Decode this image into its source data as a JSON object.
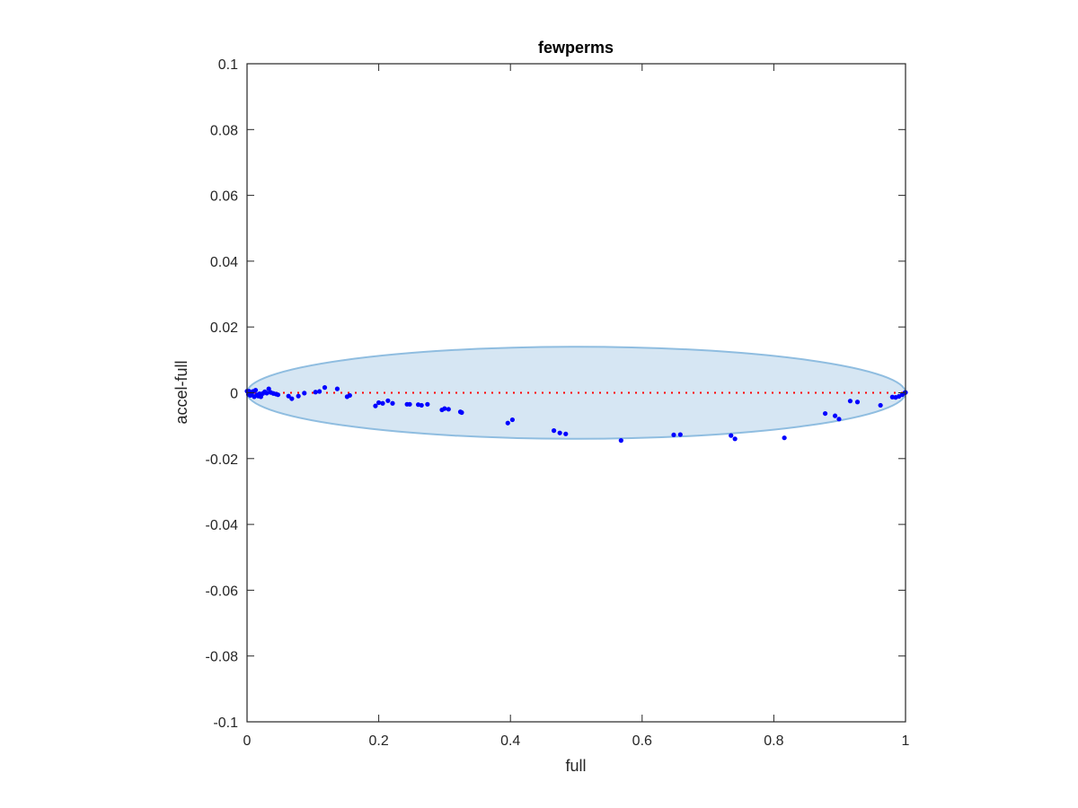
{
  "chart_data": {
    "type": "scatter",
    "title": "fewperms",
    "xlabel": "full",
    "ylabel": "accel-full",
    "xlim": [
      0,
      1
    ],
    "ylim": [
      -0.1,
      0.1
    ],
    "xticks": [
      0,
      0.2,
      0.4,
      0.6,
      0.8,
      1
    ],
    "xtick_labels": [
      "0",
      "0.2",
      "0.4",
      "0.6",
      "0.8",
      "1"
    ],
    "yticks": [
      0.1,
      0.08,
      0.06,
      0.04,
      0.02,
      0,
      -0.02,
      -0.04,
      -0.06,
      -0.08,
      -0.1
    ],
    "ytick_labels": [
      "0.1",
      "0.08",
      "0.06",
      "0.04",
      "0.02",
      "0",
      "-0.02",
      "-0.04",
      "-0.06",
      "-0.08",
      "-0.1"
    ],
    "grid": false,
    "reference_line": {
      "y": 0,
      "x_range": [
        0,
        1
      ],
      "style": "dotted",
      "color": "#ff0000"
    },
    "ellipse": {
      "cx": 0.5,
      "cy": 0,
      "rx": 0.5,
      "ry_top": 0.014,
      "ry_bottom": 0.014,
      "fill": "#d6e6f3",
      "stroke": "#8fbde0"
    },
    "marker_color": "#0000ff",
    "points": [
      [
        0.0,
        0.0005
      ],
      [
        0.002,
        -0.0005
      ],
      [
        0.003,
        0.0005
      ],
      [
        0.005,
        -0.0008
      ],
      [
        0.007,
        -0.0002
      ],
      [
        0.009,
        0.0004
      ],
      [
        0.011,
        -0.0012
      ],
      [
        0.013,
        0.0008
      ],
      [
        0.015,
        -0.0006
      ],
      [
        0.017,
        -0.001
      ],
      [
        0.019,
        -0.0003
      ],
      [
        0.021,
        -0.0012
      ],
      [
        0.024,
        -0.0002
      ],
      [
        0.027,
        0.0003
      ],
      [
        0.03,
        -0.0001
      ],
      [
        0.033,
        0.0012
      ],
      [
        0.036,
        0.0001
      ],
      [
        0.04,
        -0.0002
      ],
      [
        0.044,
        -0.0004
      ],
      [
        0.047,
        -0.0006
      ],
      [
        0.063,
        -0.001
      ],
      [
        0.068,
        -0.0018
      ],
      [
        0.078,
        -0.001
      ],
      [
        0.087,
        -0.0001
      ],
      [
        0.104,
        0.0002
      ],
      [
        0.11,
        0.0004
      ],
      [
        0.118,
        0.0016
      ],
      [
        0.137,
        0.0012
      ],
      [
        0.152,
        -0.0012
      ],
      [
        0.156,
        -0.0008
      ],
      [
        0.195,
        -0.004
      ],
      [
        0.2,
        -0.003
      ],
      [
        0.206,
        -0.0032
      ],
      [
        0.214,
        -0.0024
      ],
      [
        0.221,
        -0.0032
      ],
      [
        0.243,
        -0.0035
      ],
      [
        0.247,
        -0.0035
      ],
      [
        0.26,
        -0.0036
      ],
      [
        0.265,
        -0.0038
      ],
      [
        0.274,
        -0.0035
      ],
      [
        0.296,
        -0.0052
      ],
      [
        0.3,
        -0.0048
      ],
      [
        0.306,
        -0.005
      ],
      [
        0.324,
        -0.0058
      ],
      [
        0.326,
        -0.006
      ],
      [
        0.396,
        -0.0092
      ],
      [
        0.403,
        -0.0082
      ],
      [
        0.466,
        -0.0115
      ],
      [
        0.475,
        -0.0122
      ],
      [
        0.484,
        -0.0125
      ],
      [
        0.568,
        -0.0145
      ],
      [
        0.648,
        -0.0128
      ],
      [
        0.658,
        -0.0127
      ],
      [
        0.735,
        -0.013
      ],
      [
        0.741,
        -0.014
      ],
      [
        0.816,
        -0.0137
      ],
      [
        0.878,
        -0.0063
      ],
      [
        0.893,
        -0.007
      ],
      [
        0.899,
        -0.008
      ],
      [
        0.916,
        -0.0025
      ],
      [
        0.927,
        -0.0028
      ],
      [
        0.962,
        -0.0038
      ],
      [
        0.98,
        -0.0013
      ],
      [
        0.985,
        -0.0014
      ],
      [
        0.99,
        -0.0011
      ],
      [
        0.995,
        -0.0006
      ],
      [
        1.0,
        0.0001
      ],
      [
        0.999,
        0.0
      ]
    ]
  }
}
